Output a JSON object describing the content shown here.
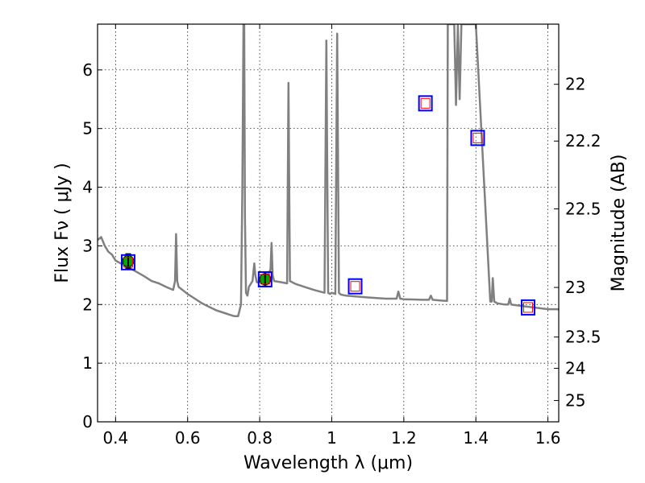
{
  "chart_data": {
    "type": "line",
    "xlabel": "Wavelength  λ (μm)",
    "ylabel": "Flux  Fν  ( μJy )",
    "y2label": "Magnitude (AB)",
    "xlim": [
      0.35,
      1.63
    ],
    "ylim": [
      0,
      6.78
    ],
    "grid": true,
    "x_ticks": [
      0.4,
      0.6,
      0.8,
      1.0,
      1.2,
      1.4,
      1.6
    ],
    "x_tick_labels": [
      "0.4",
      "0.6",
      "0.8",
      "1",
      "1.2",
      "1.4",
      "1.6"
    ],
    "y_ticks": [
      0,
      1,
      2,
      3,
      4,
      5,
      6
    ],
    "y_tick_labels": [
      "0",
      "1",
      "2",
      "3",
      "4",
      "5",
      "6"
    ],
    "mag_ticks": [
      22,
      22.2,
      22.5,
      23,
      23.5,
      24,
      25
    ],
    "mag_tick_labels": [
      "22",
      "22.2",
      "22.5",
      "23",
      "23.5",
      "24",
      "25"
    ],
    "colors": {
      "spectrum": "#808080",
      "model_square": "#0000ff",
      "model_inner": "#ff0000",
      "observed_fill": "#00aa00",
      "grid": "#000000"
    },
    "series": [
      {
        "kind": "spectrum",
        "x": [
          0.35,
          0.36,
          0.37,
          0.38,
          0.39,
          0.4,
          0.42,
          0.44,
          0.46,
          0.48,
          0.5,
          0.52,
          0.54,
          0.56,
          0.565,
          0.568,
          0.571,
          0.575,
          0.6,
          0.62,
          0.64,
          0.66,
          0.68,
          0.7,
          0.72,
          0.73,
          0.74,
          0.748,
          0.752,
          0.755,
          0.757,
          0.759,
          0.762,
          0.766,
          0.77,
          0.78,
          0.785,
          0.788,
          0.792,
          0.8,
          0.82,
          0.83,
          0.833,
          0.836,
          0.84,
          0.86,
          0.876,
          0.88,
          0.884,
          0.9,
          0.95,
          0.98,
          0.985,
          0.99,
          0.995,
          1.0,
          1.01,
          1.015,
          1.02,
          1.025,
          1.04,
          1.1,
          1.15,
          1.18,
          1.185,
          1.19,
          1.2,
          1.25,
          1.27,
          1.275,
          1.28,
          1.3,
          1.32,
          1.322,
          1.34,
          1.345,
          1.35,
          1.355,
          1.36,
          1.37,
          1.38,
          1.4,
          1.44,
          1.444,
          1.447,
          1.451,
          1.46,
          1.48,
          1.49,
          1.494,
          1.498,
          1.52,
          1.56,
          1.6,
          1.63
        ],
        "y": [
          3.1,
          3.15,
          3.0,
          2.9,
          2.85,
          2.75,
          2.68,
          2.62,
          2.55,
          2.48,
          2.4,
          2.36,
          2.3,
          2.25,
          2.4,
          3.2,
          2.4,
          2.3,
          2.18,
          2.1,
          2.02,
          1.96,
          1.9,
          1.86,
          1.82,
          1.8,
          1.8,
          2.0,
          4.0,
          6.78,
          6.78,
          3.5,
          2.2,
          2.15,
          2.3,
          2.4,
          2.7,
          2.5,
          2.38,
          2.38,
          2.45,
          2.6,
          3.05,
          2.5,
          2.4,
          2.38,
          2.36,
          5.78,
          2.4,
          2.35,
          2.25,
          2.2,
          6.5,
          2.2,
          2.18,
          2.2,
          2.18,
          6.62,
          2.2,
          2.17,
          2.15,
          2.12,
          2.1,
          2.1,
          2.22,
          2.1,
          2.09,
          2.08,
          2.08,
          2.15,
          2.08,
          2.07,
          2.06,
          6.78,
          6.78,
          5.4,
          6.78,
          5.5,
          6.78,
          6.78,
          6.78,
          6.78,
          2.05,
          2.05,
          2.45,
          2.05,
          2.02,
          2.0,
          2.0,
          2.1,
          2.0,
          1.98,
          1.95,
          1.92,
          1.92
        ]
      },
      {
        "kind": "model_points",
        "x": [
          0.435,
          0.815,
          1.065,
          1.26,
          1.405,
          1.545
        ],
        "y": [
          2.72,
          2.43,
          2.31,
          5.43,
          4.84,
          1.95
        ]
      },
      {
        "kind": "observed_points",
        "x": [
          0.435,
          0.815
        ],
        "y": [
          2.74,
          2.43
        ],
        "yerr": [
          0.12,
          0.12
        ]
      }
    ]
  }
}
